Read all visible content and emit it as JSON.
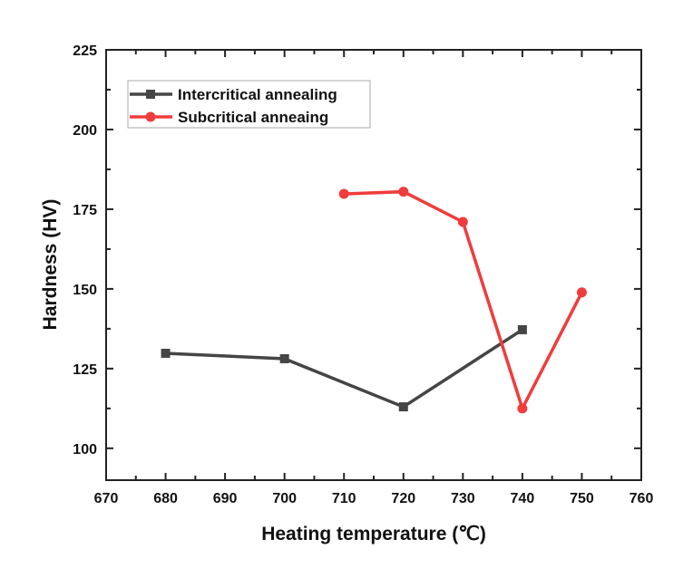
{
  "chart_data": {
    "type": "line",
    "title": "",
    "xlabel": "Heating temperature (℃)",
    "ylabel": "Hardness (HV)",
    "xlim": [
      670,
      760
    ],
    "ylim": [
      90,
      225
    ],
    "xticks": [
      670,
      680,
      690,
      700,
      710,
      720,
      730,
      740,
      750,
      760
    ],
    "yticks": [
      100,
      125,
      150,
      175,
      200,
      225
    ],
    "grid": false,
    "legend_position": "top-left",
    "series": [
      {
        "name": "Intercritical annealing",
        "color": "#454545",
        "marker": "square",
        "x": [
          680,
          700,
          720,
          740
        ],
        "y": [
          129.8,
          128.1,
          113,
          137.2
        ]
      },
      {
        "name": "Subcritical anneaing",
        "color": "#f03c3c",
        "marker": "circle",
        "x": [
          710,
          720,
          730,
          740,
          750
        ],
        "y": [
          179.8,
          180.5,
          171,
          112.5,
          148.9
        ]
      }
    ]
  }
}
